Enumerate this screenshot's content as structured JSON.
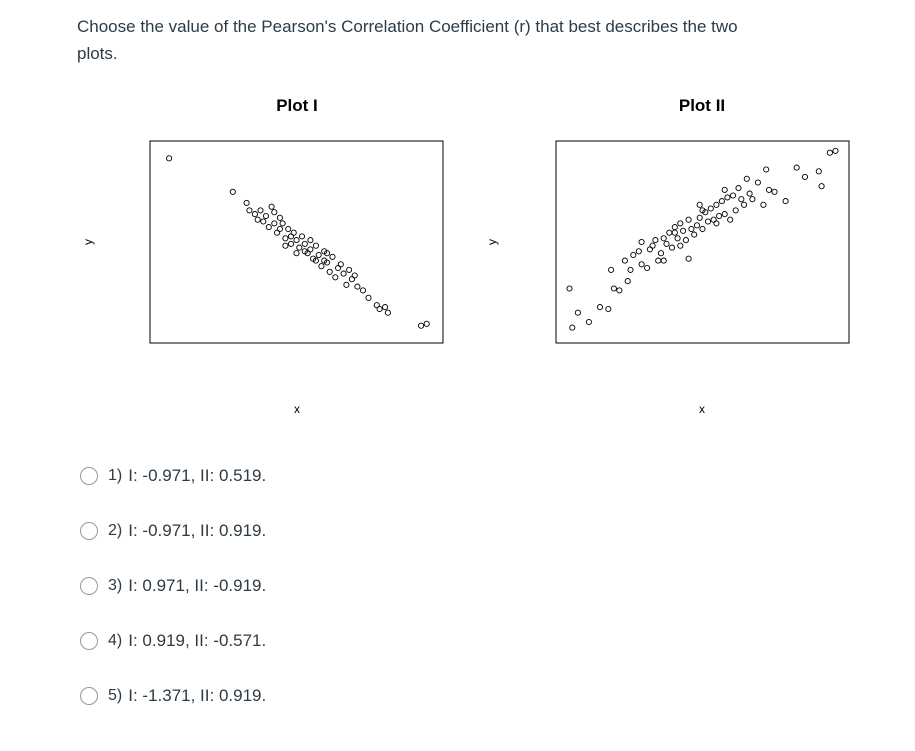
{
  "question": {
    "text": "Choose the value of the Pearson's Correlation Coefficient (r) that best describes the two plots."
  },
  "chart_data": [
    {
      "type": "scatter",
      "title": "Plot I",
      "xlabel": "x",
      "ylabel": "y",
      "grid": false,
      "correlation": "strong negative",
      "points": [
        [
          0.04,
          0.95
        ],
        [
          0.27,
          0.77
        ],
        [
          0.32,
          0.71
        ],
        [
          0.41,
          0.69
        ],
        [
          0.33,
          0.67
        ],
        [
          0.35,
          0.65
        ],
        [
          0.37,
          0.67
        ],
        [
          0.39,
          0.64
        ],
        [
          0.42,
          0.66
        ],
        [
          0.44,
          0.63
        ],
        [
          0.38,
          0.61
        ],
        [
          0.4,
          0.58
        ],
        [
          0.45,
          0.6
        ],
        [
          0.47,
          0.57
        ],
        [
          0.43,
          0.55
        ],
        [
          0.46,
          0.52
        ],
        [
          0.49,
          0.55
        ],
        [
          0.5,
          0.51
        ],
        [
          0.52,
          0.53
        ],
        [
          0.48,
          0.49
        ],
        [
          0.51,
          0.47
        ],
        [
          0.53,
          0.49
        ],
        [
          0.55,
          0.46
        ],
        [
          0.57,
          0.48
        ],
        [
          0.54,
          0.44
        ],
        [
          0.58,
          0.43
        ],
        [
          0.6,
          0.45
        ],
        [
          0.56,
          0.41
        ],
        [
          0.61,
          0.39
        ],
        [
          0.63,
          0.42
        ],
        [
          0.59,
          0.37
        ],
        [
          0.65,
          0.36
        ],
        [
          0.62,
          0.34
        ],
        [
          0.67,
          0.33
        ],
        [
          0.7,
          0.3
        ],
        [
          0.64,
          0.31
        ],
        [
          0.68,
          0.27
        ],
        [
          0.72,
          0.26
        ],
        [
          0.74,
          0.24
        ],
        [
          0.76,
          0.2
        ],
        [
          0.79,
          0.16
        ],
        [
          0.8,
          0.14
        ],
        [
          0.83,
          0.12
        ],
        [
          0.82,
          0.15
        ],
        [
          0.95,
          0.05
        ],
        [
          0.97,
          0.06
        ],
        [
          0.36,
          0.62
        ],
        [
          0.44,
          0.57
        ],
        [
          0.5,
          0.44
        ],
        [
          0.57,
          0.4
        ],
        [
          0.66,
          0.38
        ],
        [
          0.71,
          0.32
        ],
        [
          0.42,
          0.6
        ],
        [
          0.48,
          0.53
        ],
        [
          0.55,
          0.51
        ],
        [
          0.61,
          0.44
        ],
        [
          0.69,
          0.35
        ],
        [
          0.53,
          0.45
        ],
        [
          0.46,
          0.48
        ],
        [
          0.6,
          0.4
        ]
      ]
    },
    {
      "type": "scatter",
      "title": "Plot II",
      "xlabel": "x",
      "ylabel": "y",
      "grid": false,
      "correlation": "strong positive",
      "points": [
        [
          0.03,
          0.04
        ],
        [
          0.02,
          0.25
        ],
        [
          0.05,
          0.12
        ],
        [
          0.09,
          0.07
        ],
        [
          0.13,
          0.15
        ],
        [
          0.16,
          0.14
        ],
        [
          0.17,
          0.35
        ],
        [
          0.18,
          0.25
        ],
        [
          0.2,
          0.24
        ],
        [
          0.23,
          0.29
        ],
        [
          0.22,
          0.4
        ],
        [
          0.25,
          0.43
        ],
        [
          0.27,
          0.45
        ],
        [
          0.28,
          0.5
        ],
        [
          0.3,
          0.36
        ],
        [
          0.31,
          0.46
        ],
        [
          0.32,
          0.48
        ],
        [
          0.33,
          0.51
        ],
        [
          0.34,
          0.4
        ],
        [
          0.35,
          0.44
        ],
        [
          0.36,
          0.52
        ],
        [
          0.37,
          0.49
        ],
        [
          0.38,
          0.55
        ],
        [
          0.39,
          0.47
        ],
        [
          0.4,
          0.58
        ],
        [
          0.41,
          0.52
        ],
        [
          0.42,
          0.6
        ],
        [
          0.43,
          0.56
        ],
        [
          0.44,
          0.51
        ],
        [
          0.45,
          0.62
        ],
        [
          0.46,
          0.57
        ],
        [
          0.47,
          0.54
        ],
        [
          0.48,
          0.59
        ],
        [
          0.49,
          0.63
        ],
        [
          0.5,
          0.57
        ],
        [
          0.51,
          0.66
        ],
        [
          0.52,
          0.61
        ],
        [
          0.53,
          0.68
        ],
        [
          0.54,
          0.62
        ],
        [
          0.55,
          0.7
        ],
        [
          0.56,
          0.64
        ],
        [
          0.57,
          0.72
        ],
        [
          0.58,
          0.65
        ],
        [
          0.59,
          0.74
        ],
        [
          0.6,
          0.62
        ],
        [
          0.61,
          0.75
        ],
        [
          0.62,
          0.67
        ],
        [
          0.63,
          0.79
        ],
        [
          0.64,
          0.73
        ],
        [
          0.65,
          0.7
        ],
        [
          0.67,
          0.76
        ],
        [
          0.68,
          0.73
        ],
        [
          0.7,
          0.82
        ],
        [
          0.72,
          0.7
        ],
        [
          0.74,
          0.78
        ],
        [
          0.76,
          0.77
        ],
        [
          0.8,
          0.72
        ],
        [
          0.84,
          0.9
        ],
        [
          0.87,
          0.85
        ],
        [
          0.92,
          0.88
        ],
        [
          0.93,
          0.8
        ],
        [
          0.96,
          0.98
        ],
        [
          0.98,
          0.99
        ],
        [
          0.45,
          0.41
        ],
        [
          0.42,
          0.48
        ],
        [
          0.36,
          0.4
        ],
        [
          0.55,
          0.6
        ],
        [
          0.28,
          0.38
        ],
        [
          0.24,
          0.35
        ],
        [
          0.66,
          0.84
        ],
        [
          0.73,
          0.89
        ],
        [
          0.58,
          0.78
        ],
        [
          0.5,
          0.67
        ],
        [
          0.49,
          0.7
        ],
        [
          0.4,
          0.55
        ]
      ]
    }
  ],
  "options": [
    {
      "number": "1)",
      "text": "I: -0.971, II: 0.519."
    },
    {
      "number": "2)",
      "text": "I: -0.971, II: 0.919."
    },
    {
      "number": "3)",
      "text": "I: 0.971, II: -0.919."
    },
    {
      "number": "4)",
      "text": "I: 0.919, II: -0.571."
    },
    {
      "number": "5)",
      "text": "I: -1.371, II: 0.919."
    }
  ]
}
